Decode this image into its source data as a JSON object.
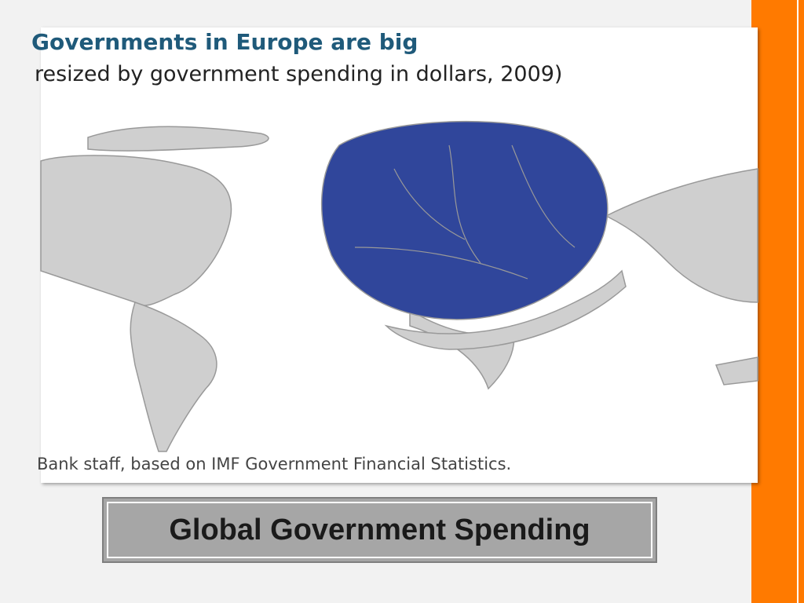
{
  "figure": {
    "title": "Governments in Europe are big",
    "subtitle": "resized by government spending in dollars, 2009)",
    "source": "Bank staff, based on IMF Government Financial Statistics."
  },
  "caption": "Global Government Spending"
}
